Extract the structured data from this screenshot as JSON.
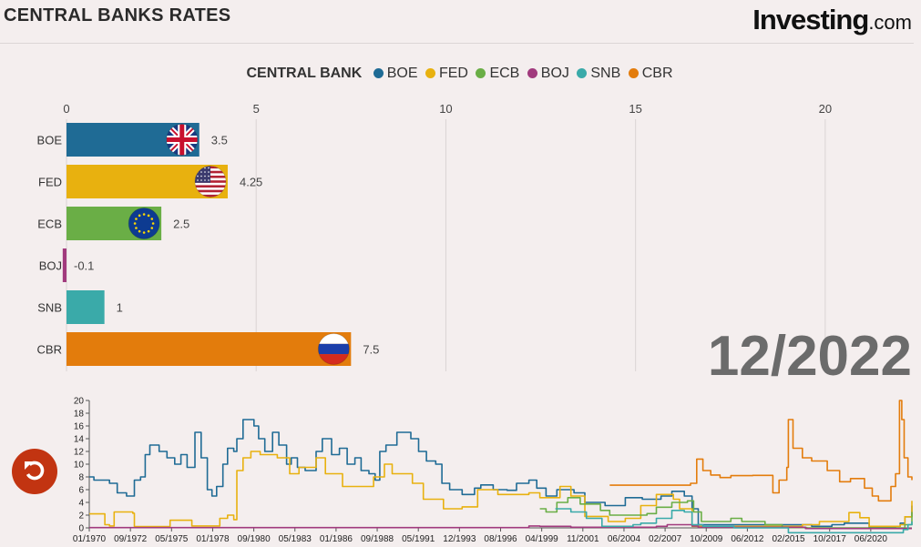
{
  "header": {
    "title": "CENTRAL BANKS RATES",
    "brand_main": "Investing",
    "brand_suffix": ".com"
  },
  "legend_title": "CENTRAL BANK",
  "current_period": "12/2022",
  "replay": {
    "icon": "replay-icon"
  },
  "colors": {
    "BOE": "#1f6b95",
    "FED": "#e8b10f",
    "ECB": "#6aae46",
    "BOJ": "#a13a7d",
    "SNB": "#3aaaa9",
    "CBR": "#e37c0c"
  },
  "chart_data": [
    {
      "type": "bar",
      "orientation": "horizontal",
      "title": "",
      "categories": [
        "BOE",
        "FED",
        "ECB",
        "BOJ",
        "SNB",
        "CBR"
      ],
      "values": [
        3.5,
        4.25,
        2.5,
        -0.1,
        1,
        7.5
      ],
      "value_labels": [
        "3.5",
        "4.25",
        "2.5",
        "-0.1",
        "1",
        "7.5"
      ],
      "flags": [
        "uk-flag-icon",
        "us-flag-icon",
        "eu-flag-icon",
        "",
        "",
        "russia-flag-icon"
      ],
      "xlim": [
        0,
        22.5
      ],
      "xticks": [
        0,
        5,
        10,
        15,
        20
      ],
      "grid": true,
      "xlabel": "",
      "ylabel": ""
    },
    {
      "type": "line",
      "title": "",
      "x": [
        "01/1970",
        "09/1972",
        "05/1975",
        "01/1978",
        "09/1980",
        "05/1983",
        "01/1986",
        "09/1988",
        "05/1991",
        "12/1993",
        "08/1996",
        "04/1999",
        "11/2001",
        "06/2004",
        "02/2007",
        "10/2009",
        "06/2012",
        "02/2015",
        "10/2017",
        "06/2020"
      ],
      "xlim": [
        1970.0,
        2022.95
      ],
      "ylim": [
        0,
        20
      ],
      "yticks": [
        0,
        2,
        4,
        6,
        8,
        10,
        12,
        14,
        16,
        18,
        20
      ],
      "series": [
        {
          "name": "BOE",
          "points": [
            [
              1970,
              8
            ],
            [
              1970.3,
              7.5
            ],
            [
              1971.3,
              7
            ],
            [
              1971.8,
              5.5
            ],
            [
              1972.4,
              5
            ],
            [
              1972.9,
              7.5
            ],
            [
              1973.3,
              8
            ],
            [
              1973.6,
              11.5
            ],
            [
              1973.9,
              13
            ],
            [
              1974.5,
              12
            ],
            [
              1975.0,
              11
            ],
            [
              1975.5,
              10
            ],
            [
              1975.9,
              11.5
            ],
            [
              1976.3,
              9.5
            ],
            [
              1976.8,
              15
            ],
            [
              1977.2,
              11
            ],
            [
              1977.6,
              6
            ],
            [
              1977.9,
              5
            ],
            [
              1978.2,
              6.5
            ],
            [
              1978.6,
              10
            ],
            [
              1978.9,
              12.5
            ],
            [
              1979.3,
              12
            ],
            [
              1979.5,
              14
            ],
            [
              1979.9,
              17
            ],
            [
              1980.3,
              17
            ],
            [
              1980.6,
              16
            ],
            [
              1980.9,
              14
            ],
            [
              1981.3,
              12
            ],
            [
              1981.8,
              15
            ],
            [
              1982.2,
              13
            ],
            [
              1982.7,
              10
            ],
            [
              1983.0,
              11
            ],
            [
              1983.4,
              9.5
            ],
            [
              1983.9,
              9
            ],
            [
              1984.4,
              9
            ],
            [
              1984.6,
              12
            ],
            [
              1985.0,
              14
            ],
            [
              1985.6,
              11.5
            ],
            [
              1986.1,
              12.5
            ],
            [
              1986.6,
              10
            ],
            [
              1987.1,
              11
            ],
            [
              1987.5,
              9
            ],
            [
              1988.0,
              8.5
            ],
            [
              1988.4,
              7.5
            ],
            [
              1988.7,
              12
            ],
            [
              1989.1,
              13
            ],
            [
              1989.8,
              15
            ],
            [
              1990.7,
              14
            ],
            [
              1991.2,
              12
            ],
            [
              1991.7,
              10.5
            ],
            [
              1992.3,
              10
            ],
            [
              1992.7,
              7
            ],
            [
              1993.2,
              6
            ],
            [
              1994.0,
              5.25
            ],
            [
              1994.8,
              6.25
            ],
            [
              1995.2,
              6.75
            ],
            [
              1996.0,
              6
            ],
            [
              1996.9,
              5.9
            ],
            [
              1997.5,
              7
            ],
            [
              1998.3,
              7.5
            ],
            [
              1998.8,
              6.25
            ],
            [
              1999.4,
              5
            ],
            [
              2000.1,
              6
            ],
            [
              2001.2,
              5.5
            ],
            [
              2001.9,
              4
            ],
            [
              2003.2,
              3.5
            ],
            [
              2004.5,
              4.75
            ],
            [
              2005.6,
              4.5
            ],
            [
              2006.8,
              5
            ],
            [
              2007.5,
              5.75
            ],
            [
              2008.3,
              5
            ],
            [
              2008.8,
              3
            ],
            [
              2009.2,
              0.5
            ],
            [
              2016.5,
              0.25
            ],
            [
              2017.8,
              0.5
            ],
            [
              2018.6,
              0.75
            ],
            [
              2020.2,
              0.1
            ],
            [
              2021.9,
              0.25
            ],
            [
              2022.2,
              0.75
            ],
            [
              2022.5,
              1.75
            ],
            [
              2022.95,
              3.5
            ]
          ]
        },
        {
          "name": "FED",
          "points": [
            [
              1970,
              2.2
            ],
            [
              1970.6,
              2.2
            ],
            [
              1971.0,
              0.5
            ],
            [
              1971.3,
              0.3
            ],
            [
              1971.6,
              2.5
            ],
            [
              1972.8,
              2.3
            ],
            [
              1972.9,
              0.2
            ],
            [
              1975.0,
              0.2
            ],
            [
              1975.2,
              1.2
            ],
            [
              1976.6,
              0.3
            ],
            [
              1978.0,
              0.3
            ],
            [
              1978.4,
              1.5
            ],
            [
              1978.9,
              2.0
            ],
            [
              1979.3,
              1.3
            ],
            [
              1979.5,
              9
            ],
            [
              1979.9,
              11
            ],
            [
              1980.4,
              12
            ],
            [
              1981.0,
              11.5
            ],
            [
              1982.1,
              11
            ],
            [
              1982.9,
              8.5
            ],
            [
              1983.5,
              9.5
            ],
            [
              1984.6,
              11
            ],
            [
              1985.2,
              8.5
            ],
            [
              1986.3,
              6.5
            ],
            [
              1987.1,
              6.5
            ],
            [
              1988.3,
              8
            ],
            [
              1989.0,
              10
            ],
            [
              1989.5,
              8.5
            ],
            [
              1990.8,
              7
            ],
            [
              1991.5,
              4.5
            ],
            [
              1992.8,
              3
            ],
            [
              1994.0,
              3.3
            ],
            [
              1995.0,
              6
            ],
            [
              1996.3,
              5.25
            ],
            [
              1998.3,
              5.5
            ],
            [
              1999.0,
              4.75
            ],
            [
              2000.3,
              6.5
            ],
            [
              2001.0,
              5
            ],
            [
              2001.9,
              1.8
            ],
            [
              2003.4,
              1.0
            ],
            [
              2004.5,
              1.5
            ],
            [
              2005.5,
              3.5
            ],
            [
              2006.5,
              5.25
            ],
            [
              2007.6,
              4.5
            ],
            [
              2008.0,
              3.0
            ],
            [
              2008.8,
              0.25
            ],
            [
              2015.9,
              0.5
            ],
            [
              2017.0,
              1.0
            ],
            [
              2018.9,
              2.4
            ],
            [
              2019.6,
              1.6
            ],
            [
              2020.2,
              0.25
            ],
            [
              2022.2,
              0.5
            ],
            [
              2022.5,
              1.75
            ],
            [
              2022.95,
              4.25
            ]
          ]
        },
        {
          "name": "ECB",
          "points": [
            [
              1999.0,
              3
            ],
            [
              1999.4,
              2.5
            ],
            [
              2000.1,
              4
            ],
            [
              2000.8,
              4.75
            ],
            [
              2001.6,
              3.75
            ],
            [
              2002.9,
              2.75
            ],
            [
              2003.5,
              2
            ],
            [
              2005.9,
              2.25
            ],
            [
              2006.5,
              3.25
            ],
            [
              2007.5,
              4
            ],
            [
              2008.5,
              4.25
            ],
            [
              2008.9,
              2.5
            ],
            [
              2009.4,
              1
            ],
            [
              2011.3,
              1.5
            ],
            [
              2012.0,
              1
            ],
            [
              2013.5,
              0.5
            ],
            [
              2014.6,
              0.05
            ],
            [
              2016.2,
              0
            ],
            [
              2022.5,
              0.5
            ],
            [
              2022.95,
              2.5
            ]
          ]
        },
        {
          "name": "BOJ",
          "points": [
            [
              1970,
              0.05
            ],
            [
              1997.8,
              0.05
            ],
            [
              1998.3,
              0.3
            ],
            [
              1999.0,
              0.25
            ],
            [
              2000.6,
              0.25
            ],
            [
              2001.0,
              0.1
            ],
            [
              2006.5,
              0.25
            ],
            [
              2007.2,
              0.5
            ],
            [
              2008.8,
              0.3
            ],
            [
              2009.2,
              0.1
            ],
            [
              2016.1,
              -0.1
            ],
            [
              2022.95,
              -0.1
            ]
          ]
        },
        {
          "name": "SNB",
          "points": [
            [
              2000.0,
              3
            ],
            [
              2001.0,
              2.5
            ],
            [
              2002.0,
              1.5
            ],
            [
              2003.0,
              0.25
            ],
            [
              2005.0,
              0.5
            ],
            [
              2005.5,
              0.75
            ],
            [
              2006.5,
              1.5
            ],
            [
              2007.5,
              2.75
            ],
            [
              2008.3,
              2.5
            ],
            [
              2008.8,
              0.5
            ],
            [
              2009.5,
              0.25
            ],
            [
              2011.5,
              0
            ],
            [
              2015.0,
              -0.75
            ],
            [
              2022.4,
              -0.25
            ],
            [
              2022.7,
              0.5
            ],
            [
              2022.95,
              1
            ]
          ]
        },
        {
          "name": "CBR",
          "points": [
            [
              2003.5,
              6.7
            ],
            [
              2008.7,
              7
            ],
            [
              2009.1,
              10.8
            ],
            [
              2009.5,
              9
            ],
            [
              2010.0,
              8.3
            ],
            [
              2010.6,
              7.9
            ],
            [
              2011.3,
              8.2
            ],
            [
              2012.7,
              8.25
            ],
            [
              2013.5,
              8.25
            ],
            [
              2014.0,
              5.5
            ],
            [
              2014.4,
              7.5
            ],
            [
              2014.9,
              9.5
            ],
            [
              2015.0,
              17
            ],
            [
              2015.3,
              12.5
            ],
            [
              2015.9,
              11
            ],
            [
              2016.5,
              10.5
            ],
            [
              2017.5,
              9
            ],
            [
              2018.3,
              7.25
            ],
            [
              2019.0,
              7.75
            ],
            [
              2019.9,
              6.25
            ],
            [
              2020.4,
              5
            ],
            [
              2020.8,
              4.25
            ],
            [
              2021.6,
              6.5
            ],
            [
              2021.9,
              8.5
            ],
            [
              2022.15,
              20
            ],
            [
              2022.3,
              17
            ],
            [
              2022.45,
              11
            ],
            [
              2022.7,
              8
            ],
            [
              2022.95,
              7.5
            ]
          ]
        }
      ]
    }
  ]
}
